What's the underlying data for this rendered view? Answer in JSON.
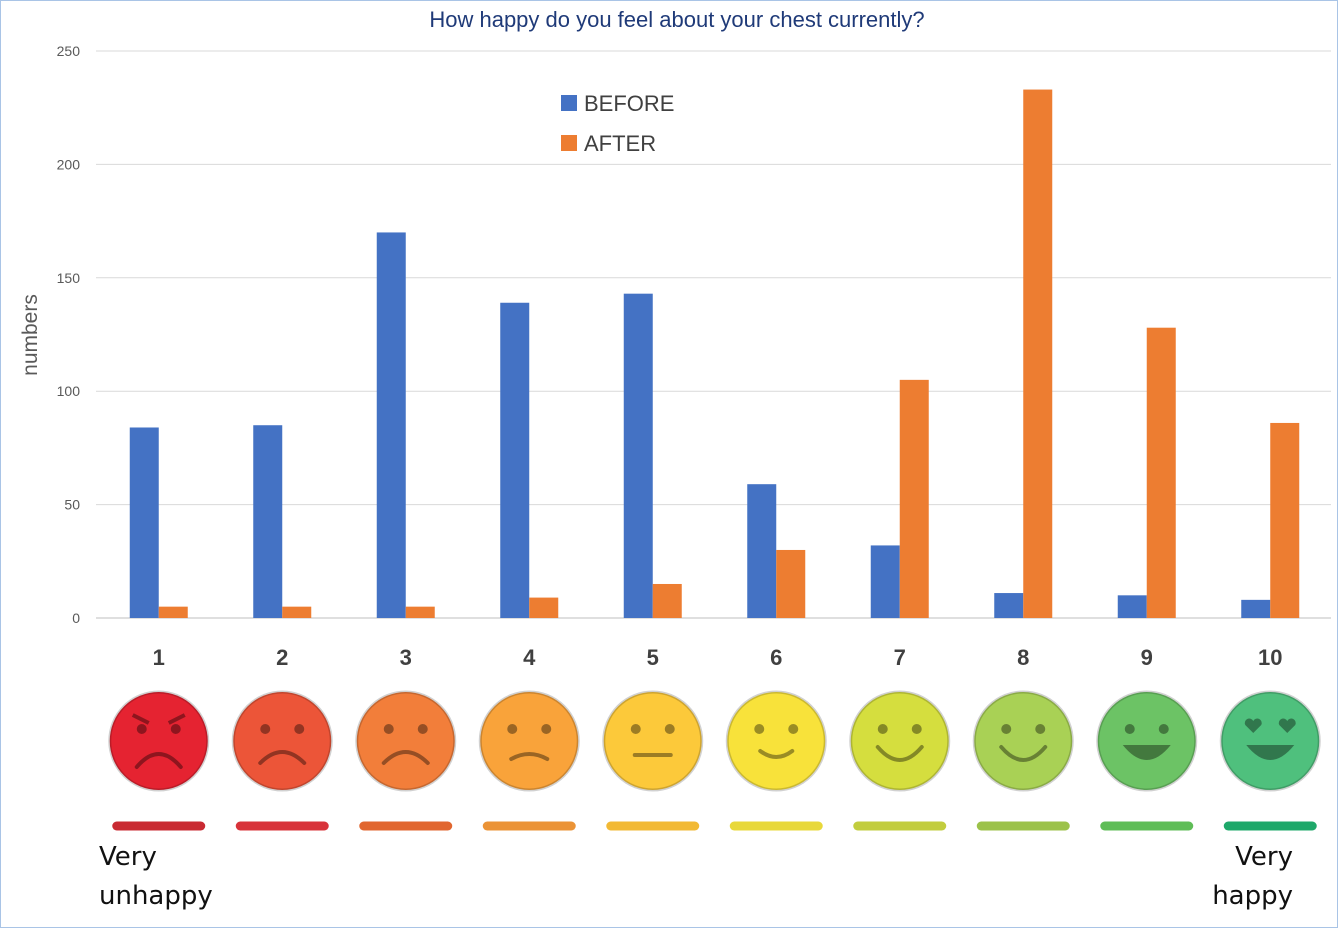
{
  "chart_data": {
    "type": "bar",
    "title": "How happy do you feel about your chest currently?",
    "xlabel": "",
    "ylabel": "numbers",
    "ylim": [
      0,
      250
    ],
    "yticks": [
      "0",
      "50",
      "100",
      "150",
      "200",
      "250"
    ],
    "categories": [
      "1",
      "2",
      "3",
      "4",
      "5",
      "6",
      "7",
      "8",
      "9",
      "10"
    ],
    "series": [
      {
        "name": "BEFORE",
        "color": "#4472c4",
        "values": [
          84,
          85,
          170,
          139,
          143,
          59,
          32,
          11,
          10,
          8
        ]
      },
      {
        "name": "AFTER",
        "color": "#ed7d31",
        "values": [
          5,
          5,
          5,
          9,
          15,
          30,
          105,
          233,
          128,
          86
        ]
      }
    ],
    "grid": true,
    "legend_position": "top-center"
  },
  "scale": {
    "faces": [
      {
        "color": "#e52331",
        "expression": "angry-face-icon"
      },
      {
        "color": "#ec5538",
        "expression": "sad-face-icon"
      },
      {
        "color": "#f27e3a",
        "expression": "sad-face-icon"
      },
      {
        "color": "#f9a33a",
        "expression": "slightly-sad-face-icon"
      },
      {
        "color": "#fcc93a",
        "expression": "neutral-face-icon"
      },
      {
        "color": "#f8e23a",
        "expression": "slight-smile-face-icon"
      },
      {
        "color": "#d5de3e",
        "expression": "smile-face-icon"
      },
      {
        "color": "#a9d155",
        "expression": "smile-face-icon"
      },
      {
        "color": "#6cc365",
        "expression": "grin-face-icon"
      },
      {
        "color": "#4fc07d",
        "expression": "heart-eyes-face-icon"
      }
    ],
    "line_colors": [
      "#c92a32",
      "#d8333a",
      "#e1662f",
      "#eb9336",
      "#f2b934",
      "#e8d83a",
      "#c2cd3e",
      "#9cc24a",
      "#5fbd57",
      "#1ea86a"
    ],
    "left_caption": [
      "Very",
      "unhappy"
    ],
    "right_caption": [
      "Very",
      "happy"
    ]
  }
}
